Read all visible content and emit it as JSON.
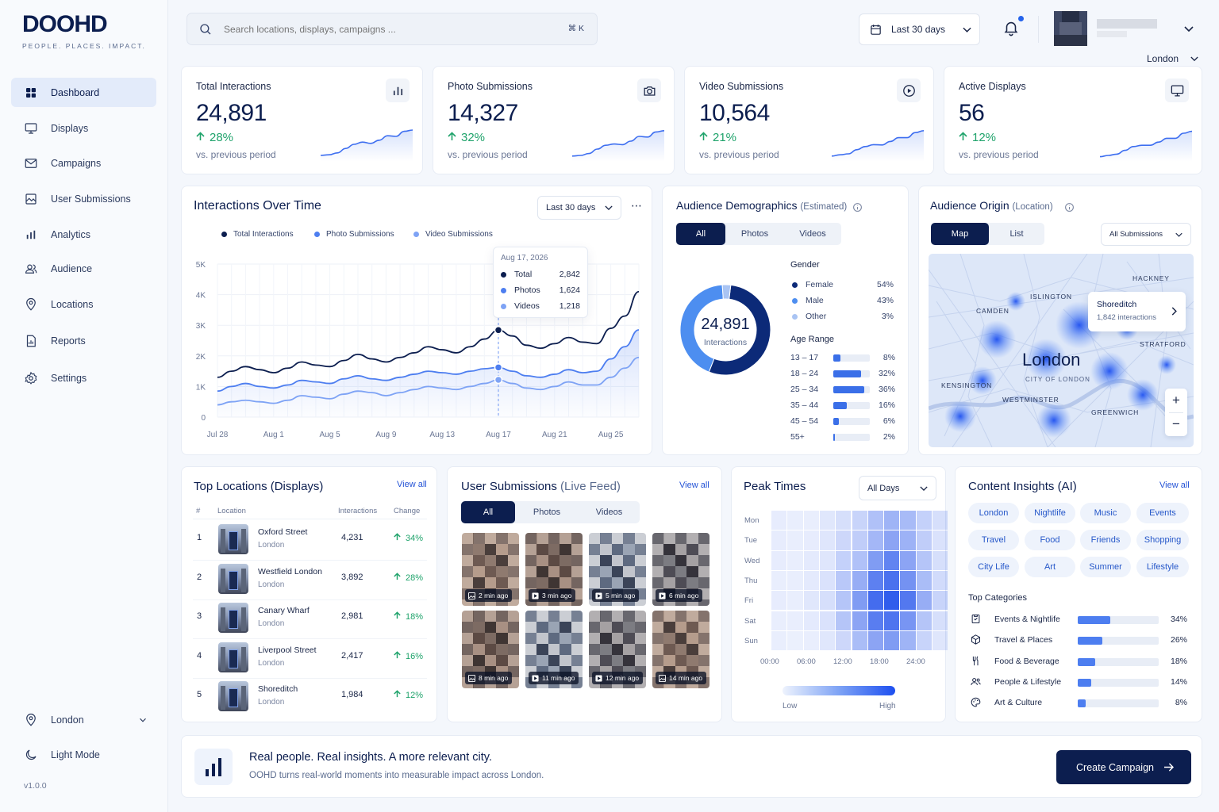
{
  "brand": {
    "name": "DOOHD",
    "tagline": "PEOPLE. PLACES. IMPACT."
  },
  "sidebar": {
    "items": [
      {
        "label": "Dashboard",
        "icon": "grid-icon",
        "active": true
      },
      {
        "label": "Displays",
        "icon": "monitor-icon"
      },
      {
        "label": "Campaigns",
        "icon": "mail-icon"
      },
      {
        "label": "User Submissions",
        "icon": "image-icon"
      },
      {
        "label": "Analytics",
        "icon": "bar-chart-icon"
      },
      {
        "label": "Audience",
        "icon": "users-icon"
      },
      {
        "label": "Locations",
        "icon": "location-pin-icon"
      },
      {
        "label": "Reports",
        "icon": "report-icon"
      },
      {
        "label": "Settings",
        "icon": "gear-icon"
      }
    ],
    "location": "London",
    "mode": "Light Mode",
    "version": "v1.0.0"
  },
  "header": {
    "search_placeholder": "Search locations, displays, campaigns ...",
    "search_shortcut": "⌘ K",
    "date_range": "Last 30 days",
    "location": "London"
  },
  "kpis": [
    {
      "title": "Total Interactions",
      "value": "24,891",
      "change": "28%",
      "sub": "vs. previous period",
      "icon": "bar-chart-icon",
      "trend": [
        0.1,
        0.12,
        0.18,
        0.32,
        0.45,
        0.52,
        0.48,
        0.58,
        0.72,
        0.7,
        0.86,
        0.9
      ]
    },
    {
      "title": "Photo Submissions",
      "value": "14,327",
      "change": "32%",
      "sub": "vs. previous period",
      "icon": "camera-icon",
      "trend": [
        0.08,
        0.1,
        0.16,
        0.3,
        0.42,
        0.46,
        0.44,
        0.55,
        0.7,
        0.68,
        0.84,
        0.88
      ]
    },
    {
      "title": "Video Submissions",
      "value": "10,564",
      "change": "21%",
      "sub": "vs. previous period",
      "icon": "play-icon",
      "trend": [
        0.08,
        0.12,
        0.15,
        0.28,
        0.38,
        0.44,
        0.43,
        0.54,
        0.66,
        0.66,
        0.82,
        0.88
      ]
    },
    {
      "title": "Active Displays",
      "value": "56",
      "change": "12%",
      "sub": "vs. previous period",
      "icon": "monitor-icon",
      "trend": [
        0.06,
        0.1,
        0.14,
        0.26,
        0.38,
        0.42,
        0.42,
        0.52,
        0.64,
        0.64,
        0.8,
        0.86
      ]
    }
  ],
  "interactions": {
    "title": "Interactions Over Time",
    "range": "Last 30 days",
    "chart_data": {
      "type": "line",
      "x": [
        "Jul 28",
        "Jul 29",
        "Jul 30",
        "Jul 31",
        "Aug 1",
        "Aug 2",
        "Aug 3",
        "Aug 4",
        "Aug 5",
        "Aug 6",
        "Aug 7",
        "Aug 8",
        "Aug 9",
        "Aug 10",
        "Aug 11",
        "Aug 12",
        "Aug 13",
        "Aug 14",
        "Aug 15",
        "Aug 16",
        "Aug 17",
        "Aug 18",
        "Aug 19",
        "Aug 20",
        "Aug 21",
        "Aug 22",
        "Aug 23",
        "Aug 24",
        "Aug 25",
        "Aug 26",
        "Aug 27"
      ],
      "xticks": [
        "Jul 28",
        "Aug 1",
        "Aug 5",
        "Aug 9",
        "Aug 13",
        "Aug 17",
        "Aug 21",
        "Aug 25"
      ],
      "yticks": [
        "0",
        "1K",
        "2K",
        "3K",
        "4K",
        "5K"
      ],
      "ylim": [
        0,
        5000
      ],
      "series": [
        {
          "name": "Total Interactions",
          "color": "#0c1e4f",
          "values": [
            1300,
            1500,
            1650,
            1550,
            1450,
            1600,
            1800,
            1700,
            1650,
            1850,
            2050,
            1900,
            1800,
            1950,
            2100,
            2300,
            2200,
            2100,
            2300,
            2550,
            2842,
            2650,
            2350,
            2250,
            2400,
            2600,
            2450,
            2400,
            2900,
            3300,
            4100
          ]
        },
        {
          "name": "Photo Submissions",
          "color": "#4d7ef0",
          "values": [
            850,
            1000,
            1100,
            1000,
            950,
            1050,
            1200,
            1150,
            1100,
            1250,
            1350,
            1250,
            1200,
            1300,
            1400,
            1500,
            1450,
            1400,
            1500,
            1580,
            1624,
            1500,
            1350,
            1300,
            1400,
            1550,
            1450,
            1500,
            1900,
            2300,
            2850
          ]
        },
        {
          "name": "Video Submissions",
          "color": "#7ea3f5",
          "values": [
            400,
            500,
            550,
            500,
            450,
            550,
            700,
            650,
            600,
            750,
            850,
            800,
            700,
            800,
            900,
            1000,
            950,
            900,
            1000,
            1100,
            1218,
            1100,
            950,
            900,
            1000,
            1150,
            1050,
            1050,
            1300,
            1600,
            1950
          ]
        }
      ]
    },
    "tooltip": {
      "date": "Aug 17, 2026",
      "rows": [
        {
          "label": "Total",
          "value": "2,842"
        },
        {
          "label": "Photos",
          "value": "1,624"
        },
        {
          "label": "Videos",
          "value": "1,218"
        }
      ]
    }
  },
  "demographics": {
    "title": "Audience Demographics",
    "title_note": "(Estimated)",
    "tabs": [
      "All",
      "Photos",
      "Videos"
    ],
    "total": "24,891",
    "total_label": "Interactions",
    "gender_title": "Gender",
    "gender": [
      {
        "label": "Female",
        "value": "54%",
        "color": "#0c2a78"
      },
      {
        "label": "Male",
        "value": "43%",
        "color": "#4d8ef0"
      },
      {
        "label": "Other",
        "value": "3%",
        "color": "#a9c4f3"
      }
    ],
    "gender_values": [
      54,
      43,
      3
    ],
    "age_title": "Age Range",
    "ages": [
      {
        "label": "13 – 17",
        "value": "8%",
        "pct": 8
      },
      {
        "label": "18 – 24",
        "value": "32%",
        "pct": 32
      },
      {
        "label": "25 – 34",
        "value": "36%",
        "pct": 36
      },
      {
        "label": "35 – 44",
        "value": "16%",
        "pct": 16
      },
      {
        "label": "45 – 54",
        "value": "6%",
        "pct": 6
      },
      {
        "label": "55+",
        "value": "2%",
        "pct": 2
      }
    ]
  },
  "origin": {
    "title": "Audience Origin",
    "title_note": "(Location)",
    "tabs": [
      "Map",
      "List"
    ],
    "filter": "All Submissions",
    "map_labels": [
      "HACKNEY",
      "ISLINGTON",
      "CAMDEN",
      "STRATFORD",
      "KENSINGTON",
      "WESTMINSTER",
      "GREENWICH"
    ],
    "city": "London",
    "city_sub": "CITY OF LONDON",
    "popup": {
      "name": "Shoreditch",
      "sub": "1,842 interactions"
    },
    "zoom_in": "+",
    "zoom_out": "−"
  },
  "top_locations": {
    "title": "Top Locations (Displays)",
    "view_all": "View all",
    "headers": [
      "#",
      "Location",
      "Interactions",
      "Change"
    ],
    "rows": [
      {
        "rank": "1",
        "name": "Oxford Street",
        "city": "London",
        "value": "4,231",
        "change": "34%"
      },
      {
        "rank": "2",
        "name": "Westfield London",
        "city": "London",
        "value": "3,892",
        "change": "28%"
      },
      {
        "rank": "3",
        "name": "Canary Wharf",
        "city": "London",
        "value": "2,981",
        "change": "18%"
      },
      {
        "rank": "4",
        "name": "Liverpool Street",
        "city": "London",
        "value": "2,417",
        "change": "16%"
      },
      {
        "rank": "5",
        "name": "Shoreditch",
        "city": "London",
        "value": "1,984",
        "change": "12%"
      }
    ]
  },
  "submissions": {
    "title": "User Submissions",
    "title_note": "(Live Feed)",
    "view_all": "View all",
    "tabs": [
      "All",
      "Photos",
      "Videos"
    ],
    "items": [
      {
        "time": "2 min ago",
        "kind": "photo"
      },
      {
        "time": "3 min ago",
        "kind": "video"
      },
      {
        "time": "5 min ago",
        "kind": "video"
      },
      {
        "time": "6 min ago",
        "kind": "video"
      },
      {
        "time": "8 min ago",
        "kind": "photo"
      },
      {
        "time": "11 min ago",
        "kind": "video"
      },
      {
        "time": "12 min ago",
        "kind": "video"
      },
      {
        "time": "14 min ago",
        "kind": "photo"
      }
    ]
  },
  "peak": {
    "title": "Peak Times",
    "filter": "All Days",
    "days": [
      "Mon",
      "Tue",
      "Wed",
      "Thu",
      "Fri",
      "Sat",
      "Sun"
    ],
    "hours": [
      "00:00",
      "06:00",
      "12:00",
      "18:00",
      "24:00"
    ],
    "low": "Low",
    "high": "High",
    "chart_data": {
      "type": "heatmap",
      "rows": [
        "Mon",
        "Tue",
        "Wed",
        "Thu",
        "Fri",
        "Sat",
        "Sun"
      ],
      "values": [
        [
          0.05,
          0.04,
          0.04,
          0.08,
          0.14,
          0.2,
          0.32,
          0.4,
          0.36,
          0.22,
          0.14
        ],
        [
          0.05,
          0.04,
          0.05,
          0.1,
          0.18,
          0.25,
          0.38,
          0.5,
          0.42,
          0.24,
          0.12
        ],
        [
          0.05,
          0.04,
          0.06,
          0.1,
          0.22,
          0.32,
          0.55,
          0.7,
          0.5,
          0.3,
          0.14
        ],
        [
          0.04,
          0.04,
          0.06,
          0.12,
          0.28,
          0.45,
          0.72,
          0.82,
          0.62,
          0.35,
          0.16
        ],
        [
          0.05,
          0.04,
          0.08,
          0.14,
          0.3,
          0.55,
          0.85,
          0.95,
          0.78,
          0.45,
          0.2
        ],
        [
          0.04,
          0.04,
          0.06,
          0.12,
          0.3,
          0.5,
          0.75,
          0.8,
          0.6,
          0.3,
          0.14
        ],
        [
          0.04,
          0.03,
          0.04,
          0.08,
          0.18,
          0.35,
          0.5,
          0.55,
          0.4,
          0.2,
          0.1
        ]
      ]
    }
  },
  "insights": {
    "title": "Content Insights (AI)",
    "view_all": "View all",
    "tags": [
      "London",
      "Nightlife",
      "Music",
      "Events",
      "Travel",
      "Food",
      "Friends",
      "Shopping",
      "City Life",
      "Art",
      "Summer",
      "Lifestyle"
    ],
    "categories_title": "Top Categories",
    "categories": [
      {
        "label": "Events & Nightlife",
        "value": "34%",
        "pct": 34,
        "icon": "ticket-icon"
      },
      {
        "label": "Travel & Places",
        "value": "26%",
        "pct": 26,
        "icon": "cube-icon"
      },
      {
        "label": "Food & Beverage",
        "value": "18%",
        "pct": 18,
        "icon": "cutlery-icon"
      },
      {
        "label": "People & Lifestyle",
        "value": "14%",
        "pct": 14,
        "icon": "people-icon"
      },
      {
        "label": "Art & Culture",
        "value": "8%",
        "pct": 8,
        "icon": "palette-icon"
      }
    ]
  },
  "banner": {
    "title": "Real people. Real insights. A more relevant city.",
    "sub": "OOHD turns real-world moments into measurable impact across London.",
    "cta": "Create Campaign"
  }
}
